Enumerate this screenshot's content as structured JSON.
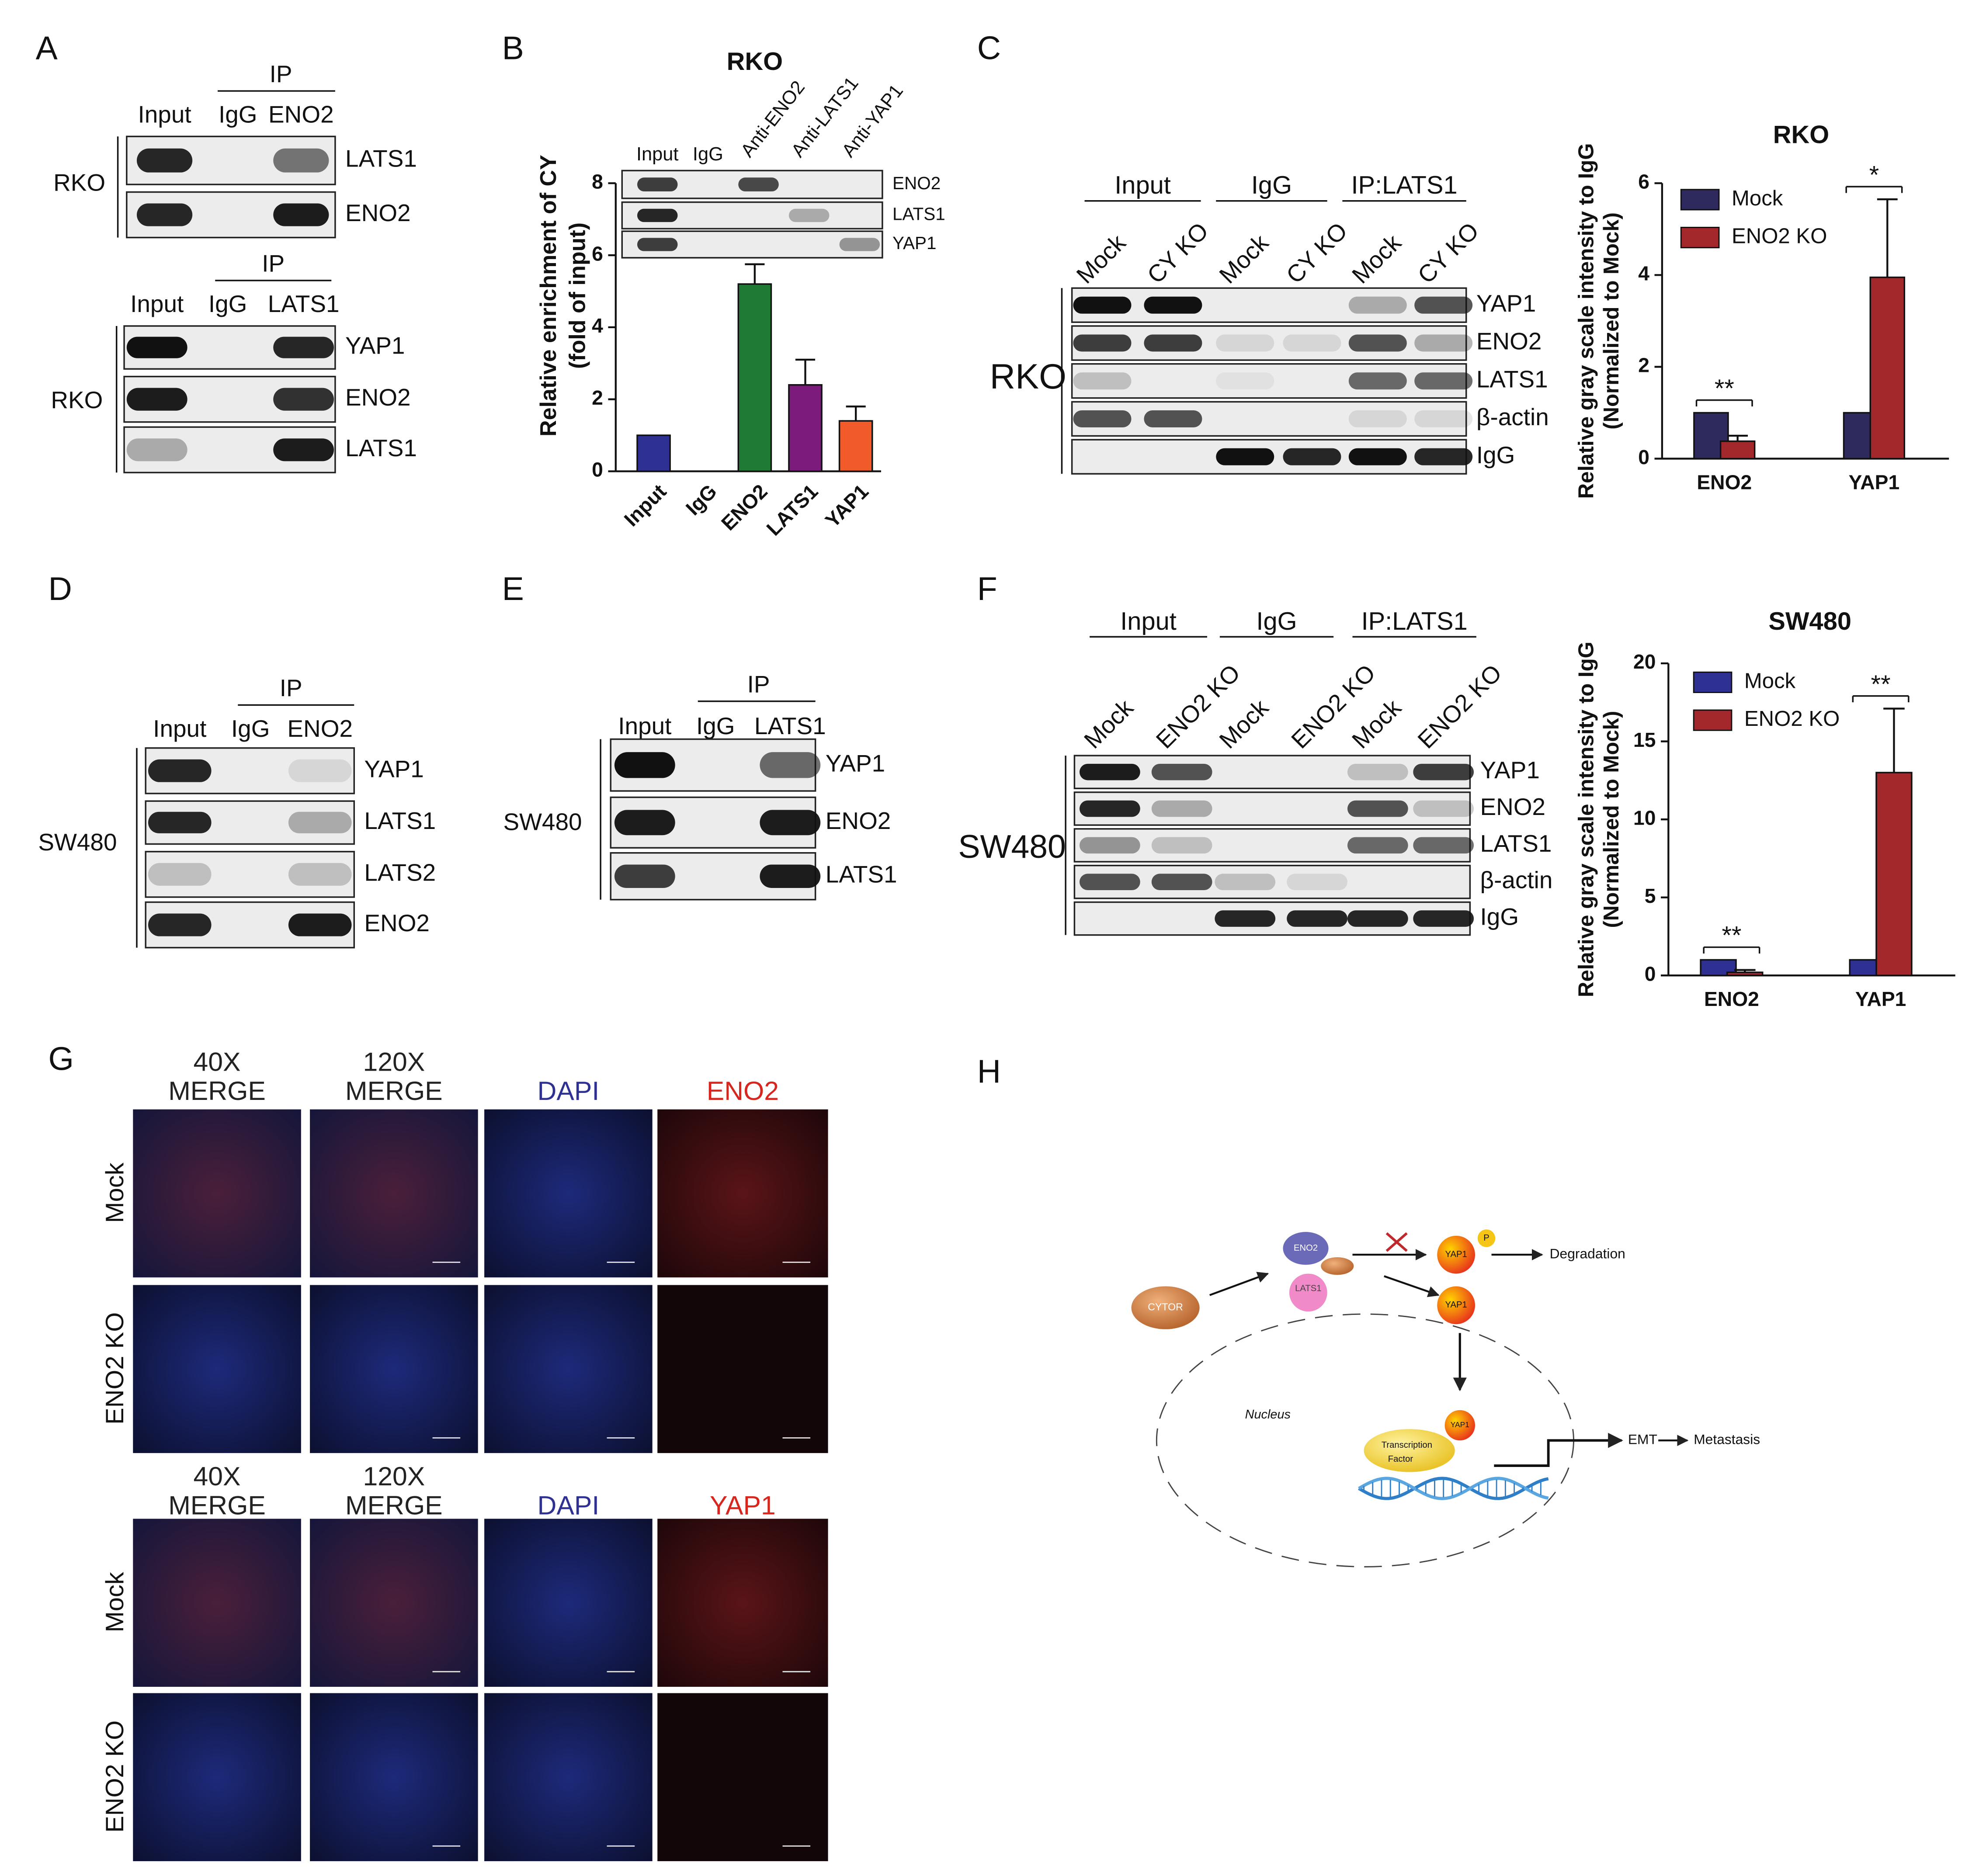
{
  "chart_data": [
    {
      "type": "bar",
      "title": "RKO",
      "ylabel": [
        "Relative enrichment of CY",
        "(fold of input)"
      ],
      "categories": [
        "Input",
        "IgG",
        "ENO2",
        "LATS1",
        "YAP1"
      ],
      "values": [
        1,
        0,
        5.2,
        2.4,
        1.4
      ],
      "errors": [
        null,
        null,
        0.55,
        0.7,
        0.4
      ],
      "colors": [
        "#2e3192",
        "#000000",
        "#1e7a34",
        "#7b1c7d",
        "#f15a29"
      ],
      "ylim": [
        0,
        8
      ],
      "yticks": [
        0,
        2,
        4,
        6,
        8
      ]
    },
    {
      "type": "bar",
      "title": "RKO",
      "ylabel": [
        "Relative gray scale intensity to IgG",
        "(Normalized to Mock)"
      ],
      "categories": [
        "ENO2",
        "YAP1"
      ],
      "series": [
        {
          "name": "Mock",
          "color": "#2e2a5e",
          "values": [
            1,
            1
          ]
        },
        {
          "name": "ENO2 KO",
          "color": "#a3282c",
          "values": [
            0.38,
            3.95
          ],
          "errors": [
            0.12,
            1.7
          ]
        }
      ],
      "significance": [
        "**",
        "*"
      ],
      "ylim": [
        0,
        6
      ],
      "yticks": [
        0,
        2,
        4,
        6
      ]
    },
    {
      "type": "bar",
      "title": "SW480",
      "ylabel": [
        "Relative gray scale intensity to IgG",
        "(Normalized to Mock)"
      ],
      "categories": [
        "ENO2",
        "YAP1"
      ],
      "series": [
        {
          "name": "Mock",
          "color": "#2e3192",
          "values": [
            1,
            1
          ]
        },
        {
          "name": "ENO2 KO",
          "color": "#a3282c",
          "values": [
            0.2,
            13
          ],
          "errors": [
            0.15,
            4.1
          ]
        }
      ],
      "significance": [
        "**",
        "**"
      ],
      "ylim": [
        0,
        20
      ],
      "yticks": [
        0,
        5,
        10,
        15,
        20
      ]
    }
  ],
  "panels": {
    "A": {
      "letter": "A",
      "blots": [
        {
          "ip": "IP",
          "lanes": [
            "Input",
            "IgG",
            "ENO2"
          ],
          "cell": "RKO",
          "rows": [
            "LATS1",
            "ENO2"
          ]
        },
        {
          "ip": "IP",
          "lanes": [
            "Input",
            "IgG",
            "LATS1"
          ],
          "cell": "RKO",
          "rows": [
            "YAP1",
            "ENO2",
            "LATS1"
          ]
        }
      ]
    },
    "B": {
      "letter": "B",
      "lanes": [
        "Input",
        "IgG",
        "Anti-ENO2",
        "Anti-LATS1",
        "Anti-YAP1"
      ],
      "rows": [
        "ENO2",
        "LATS1",
        "YAP1"
      ]
    },
    "C": {
      "letter": "C",
      "groups": [
        "Input",
        "IgG",
        "IP:LATS1"
      ],
      "lanes": [
        "Mock",
        "CY KO",
        "Mock",
        "CY KO",
        "Mock",
        "CY KO"
      ],
      "cell": "RKO",
      "rows": [
        "YAP1",
        "ENO2",
        "LATS1",
        "β-actin",
        "IgG"
      ]
    },
    "D": {
      "letter": "D",
      "ip": "IP",
      "lanes": [
        "Input",
        "IgG",
        "ENO2"
      ],
      "cell": "SW480",
      "rows": [
        "YAP1",
        "LATS1",
        "LATS2",
        "ENO2"
      ]
    },
    "E": {
      "letter": "E",
      "ip": "IP",
      "lanes": [
        "Input",
        "IgG",
        "LATS1"
      ],
      "cell": "SW480",
      "rows": [
        "YAP1",
        "ENO2",
        "LATS1"
      ]
    },
    "F": {
      "letter": "F",
      "groups": [
        "Input",
        "IgG",
        "IP:LATS1"
      ],
      "lanes": [
        "Mock",
        "ENO2 KO",
        "Mock",
        "ENO2 KO",
        "Mock",
        "ENO2 KO"
      ],
      "cell": "SW480",
      "rows": [
        "YAP1",
        "ENO2",
        "LATS1",
        "β-actin",
        "IgG"
      ]
    },
    "G": {
      "letter": "G",
      "grids": [
        {
          "columns": [
            [
              "40X",
              "MERGE"
            ],
            [
              "120X",
              "MERGE"
            ],
            [
              "DAPI"
            ],
            [
              "ENO2"
            ]
          ],
          "header_colors": [
            "#222222",
            "#222222",
            "#2e3192",
            "#d7261e"
          ],
          "rows": [
            "Mock",
            "ENO2 KO"
          ]
        },
        {
          "columns": [
            [
              "40X",
              "MERGE"
            ],
            [
              "120X",
              "MERGE"
            ],
            [
              "DAPI"
            ],
            [
              "YAP1"
            ]
          ],
          "header_colors": [
            "#222222",
            "#222222",
            "#2e3192",
            "#d7261e"
          ],
          "rows": [
            "Mock",
            "ENO2 KO"
          ]
        }
      ]
    },
    "H": {
      "letter": "H",
      "labels": {
        "cytor": "CYTOR",
        "eno2": "ENO2",
        "lats1": "LATS1",
        "yap1_top": "YAP1",
        "p": "P",
        "degradation": "Degradation",
        "yap1_mid": "YAP1",
        "nucleus": "Nucleus",
        "transcription_factor": [
          "Transcription",
          "Factor"
        ],
        "yap1_nucleus": "YAP1",
        "emt": "EMT",
        "metastasis": "Metastasis"
      }
    }
  }
}
